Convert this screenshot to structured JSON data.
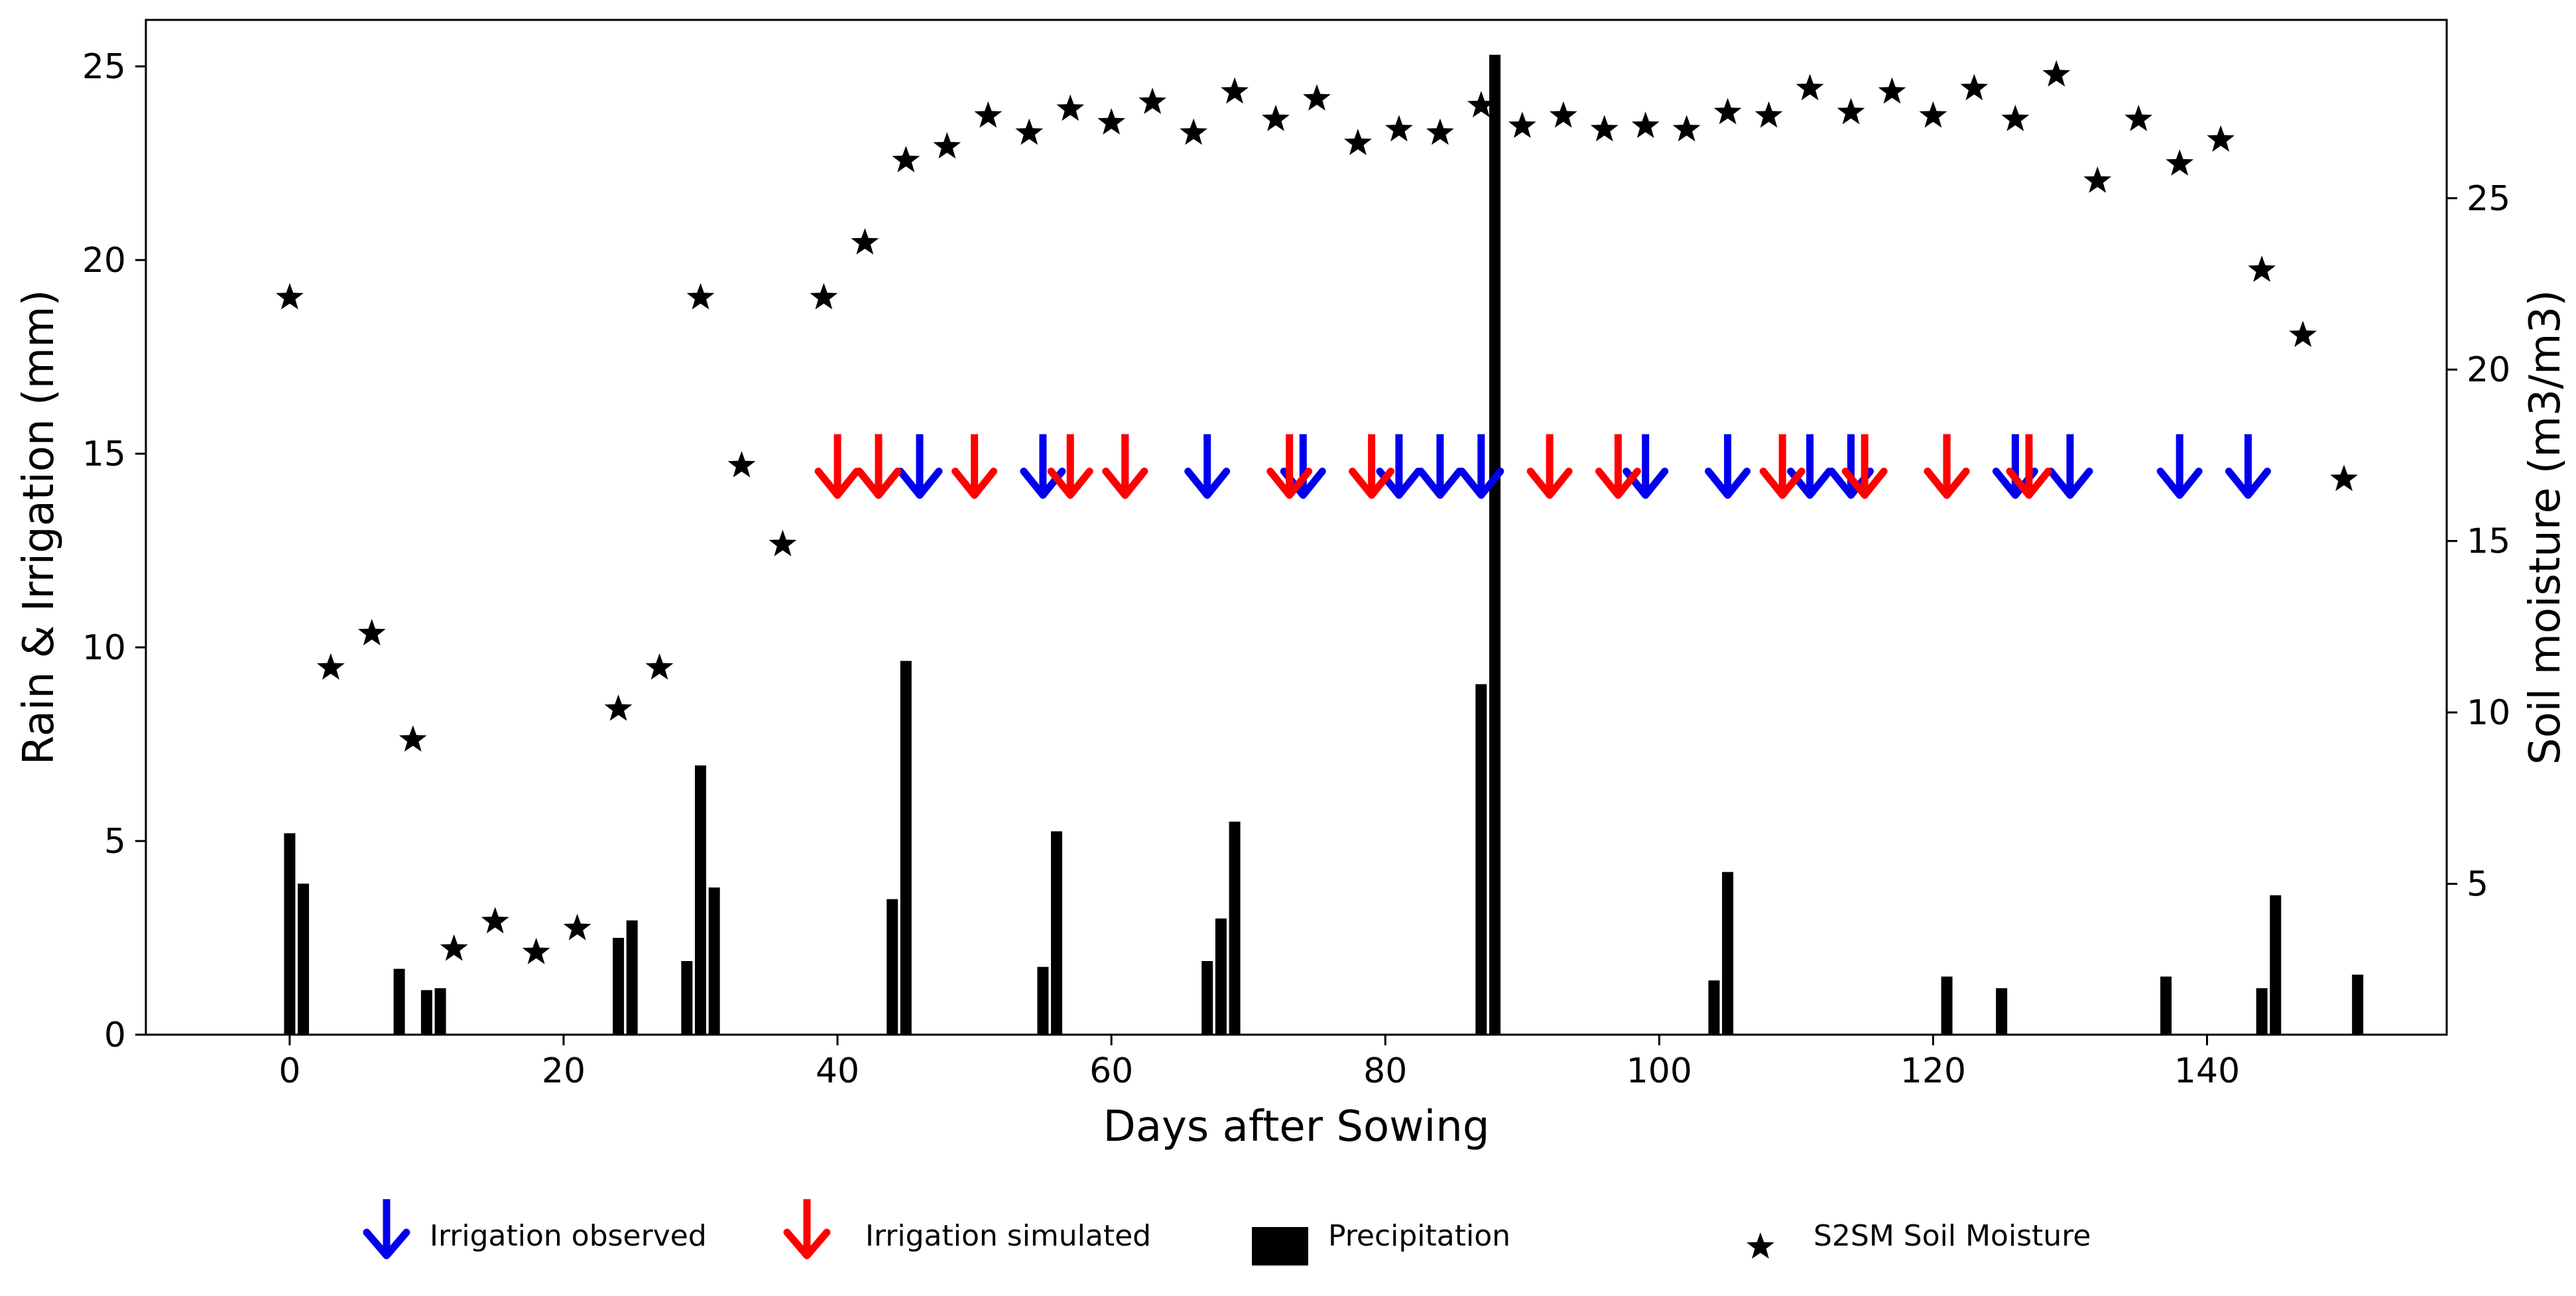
{
  "chart_data": {
    "type": "bar+scatter",
    "xlabel": "Days after Sowing",
    "ylabel_left": "Rain & Irrigation (mm)",
    "ylabel_right": "Soil moisture (m3/m3)",
    "xlim": [
      -10.5,
      157.5
    ],
    "ylim_left": [
      0,
      26.2
    ],
    "ylim_right": [
      0.6,
      30.2
    ],
    "x_ticks": [
      0,
      20,
      40,
      60,
      80,
      100,
      120,
      140
    ],
    "y_left_ticks": [
      0,
      5,
      10,
      15,
      20,
      25
    ],
    "y_right_ticks": [
      5,
      10,
      15,
      20,
      25
    ],
    "precipitation": {
      "name": "Precipitation",
      "color": "#000000",
      "days": [
        0,
        1,
        8,
        10,
        11,
        24,
        25,
        29,
        30,
        31,
        44,
        45,
        55,
        56,
        67,
        68,
        69,
        87,
        88,
        104,
        105,
        121,
        125,
        137,
        144,
        145,
        151
      ],
      "values": [
        5.2,
        3.9,
        1.7,
        1.15,
        1.2,
        2.5,
        2.95,
        1.9,
        6.95,
        3.8,
        3.5,
        9.65,
        1.75,
        5.25,
        1.9,
        3.0,
        5.5,
        9.05,
        25.3,
        1.4,
        4.2,
        1.5,
        1.2,
        1.5,
        1.2,
        3.6,
        1.55
      ]
    },
    "soil_moisture": {
      "name": "S2SM Soil Moisture",
      "color": "#000000",
      "days": [
        0,
        3,
        6,
        9,
        12,
        15,
        18,
        21,
        24,
        27,
        30,
        33,
        36,
        39,
        42,
        45,
        48,
        51,
        54,
        57,
        60,
        63,
        66,
        69,
        72,
        75,
        78,
        81,
        84,
        87,
        90,
        93,
        96,
        99,
        102,
        105,
        108,
        111,
        114,
        117,
        120,
        123,
        126,
        129,
        132,
        135,
        138,
        141,
        144,
        147,
        150
      ],
      "values": [
        22.1,
        11.3,
        12.3,
        9.2,
        3.1,
        3.9,
        3.0,
        3.7,
        10.1,
        11.3,
        22.1,
        17.2,
        14.9,
        22.1,
        23.7,
        26.1,
        26.5,
        27.4,
        26.9,
        27.6,
        27.2,
        27.8,
        26.9,
        28.1,
        27.3,
        27.9,
        26.6,
        27.0,
        26.9,
        27.7,
        27.1,
        27.4,
        27.0,
        27.1,
        27.0,
        27.5,
        27.4,
        28.2,
        27.5,
        28.1,
        27.4,
        28.2,
        27.3,
        28.6,
        25.5,
        27.3,
        26.0,
        26.7,
        22.9,
        21.0,
        16.8
      ]
    },
    "irrigation_observed": {
      "name": "Irrigation observed",
      "color": "#0000ee",
      "days": [
        43,
        46,
        55,
        61,
        67,
        74,
        81,
        84,
        87,
        99,
        105,
        111,
        114,
        121,
        126,
        130,
        138,
        143
      ],
      "level": 14.1
    },
    "irrigation_simulated": {
      "name": "Irrigation simulated",
      "color": "#ff0000",
      "days": [
        40,
        43,
        50,
        57,
        61,
        73,
        79,
        92,
        97,
        109,
        115,
        121,
        127
      ],
      "level": 14.1
    }
  },
  "legend": [
    {
      "key": "observed",
      "label": "Irrigation observed",
      "icon": "blue-down-arrow-icon"
    },
    {
      "key": "simulated",
      "label": "Irrigation simulated",
      "icon": "red-down-arrow-icon"
    },
    {
      "key": "precip",
      "label": "Precipitation",
      "icon": "black-rectangle-icon"
    },
    {
      "key": "sm",
      "label": "S2SM Soil Moisture",
      "icon": "black-star-icon"
    }
  ]
}
